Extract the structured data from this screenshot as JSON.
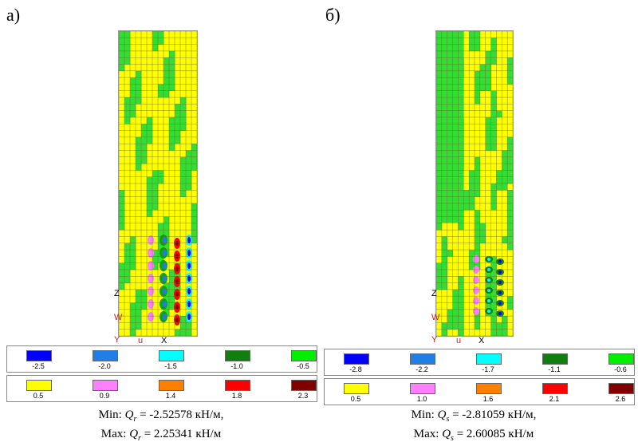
{
  "panels": [
    {
      "label": "а)",
      "axes": {
        "z": "Z",
        "x": "X",
        "w": "W",
        "u": "u",
        "y": "Y"
      },
      "legend_neg": [
        {
          "value": "-2.5",
          "color": "#0000ff"
        },
        {
          "value": "-2.0",
          "color": "#1f7fe6"
        },
        {
          "value": "-1.5",
          "color": "#00ffff"
        },
        {
          "value": "-1.0",
          "color": "#107f10"
        },
        {
          "value": "-0.5",
          "color": "#00ee00"
        }
      ],
      "legend_pos": [
        {
          "value": "0.5",
          "color": "#ffff00"
        },
        {
          "value": "0.9",
          "color": "#ff80ff"
        },
        {
          "value": "1.4",
          "color": "#ff8000"
        },
        {
          "value": "1.8",
          "color": "#ff0000"
        },
        {
          "value": "2.3",
          "color": "#800000"
        }
      ],
      "caption": {
        "min_prefix": "Min: ",
        "q": "Q",
        "min_sub": "r",
        "min_value": " = -2.52578 кН/м,",
        "max_prefix": "Max: ",
        "max_sub": "r",
        "max_value": " = 2.25341 кН/м"
      }
    },
    {
      "label": "б)",
      "axes": {
        "z": "Z",
        "x": "X",
        "w": "W",
        "u": "u",
        "y": "Y"
      },
      "legend_neg": [
        {
          "value": "-2.8",
          "color": "#0000ff"
        },
        {
          "value": "-2.2",
          "color": "#1f7fe6"
        },
        {
          "value": "-1.7",
          "color": "#00ffff"
        },
        {
          "value": "-1.1",
          "color": "#107f10"
        },
        {
          "value": "-0.6",
          "color": "#00ee00"
        }
      ],
      "legend_pos": [
        {
          "value": "0.5",
          "color": "#ffff00"
        },
        {
          "value": "1.0",
          "color": "#ff80ff"
        },
        {
          "value": "1.6",
          "color": "#ff8000"
        },
        {
          "value": "2.1",
          "color": "#ff0000"
        },
        {
          "value": "2.6",
          "color": "#800000"
        }
      ],
      "caption": {
        "min_prefix": "Min: ",
        "q": "Q",
        "min_sub": "s",
        "min_value": " = -2.81059 кН/м,",
        "max_prefix": "Max: ",
        "max_sub": "s",
        "max_value": " = 2.60085 кН/м"
      }
    }
  ]
}
